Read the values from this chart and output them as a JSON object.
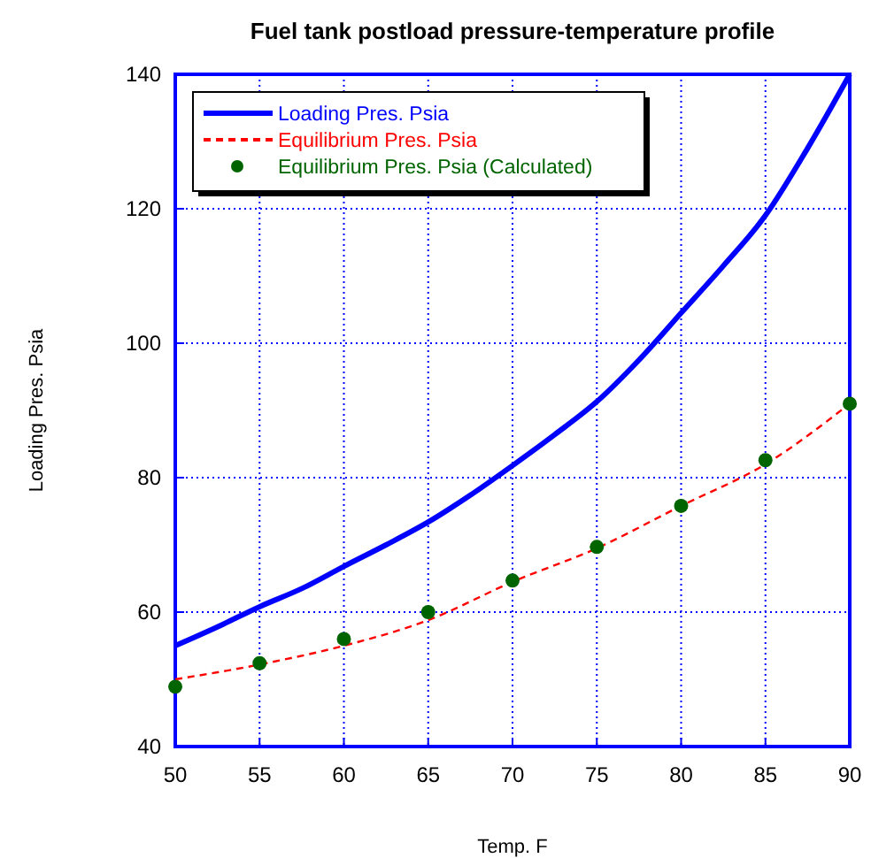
{
  "chart_data": {
    "type": "line",
    "title": "Fuel tank postload pressure-temperature profile",
    "xlabel": "Temp. F",
    "ylabel": "Loading Pres. Psia",
    "xlim": [
      50,
      90
    ],
    "xticks": [
      50,
      55,
      60,
      65,
      70,
      75,
      80,
      85,
      90
    ],
    "ylim": [
      40,
      140
    ],
    "yticks": [
      40,
      60,
      80,
      100,
      120,
      140
    ],
    "grid": true,
    "legend": "top left",
    "series": [
      {
        "name": "Loading Pres. Psia",
        "color": "#0000ff",
        "line_style": "solid",
        "marker": "none",
        "x": [
          50,
          52.5,
          55,
          57.5,
          60,
          62.5,
          65,
          67.5,
          70,
          72.5,
          75,
          77.5,
          80,
          82.5,
          85,
          87.5,
          90
        ],
        "values": [
          55,
          57.8,
          60.8,
          63.5,
          66.8,
          70,
          73.4,
          77.4,
          81.8,
          86.4,
          91.3,
          97.5,
          104.5,
          111.5,
          119,
          129,
          140
        ]
      },
      {
        "name": "Equilibrium Pres. Psia",
        "color": "#ff0000",
        "line_style": "dashed",
        "marker": "none",
        "x": [
          50,
          55,
          60,
          65,
          70,
          75,
          80,
          85,
          90
        ],
        "values": [
          50,
          52.2,
          55,
          58.8,
          64.5,
          69.5,
          75.8,
          82,
          91
        ]
      },
      {
        "name": "Equilibrium Pres. Psia (Calculated)",
        "type": "scatter",
        "color": "#006400",
        "marker": "circle",
        "x": [
          50,
          55,
          60,
          65,
          70,
          75,
          80,
          85,
          90
        ],
        "values": [
          48.9,
          52.4,
          56,
          60,
          64.7,
          69.7,
          75.8,
          82.6,
          91
        ]
      }
    ]
  }
}
